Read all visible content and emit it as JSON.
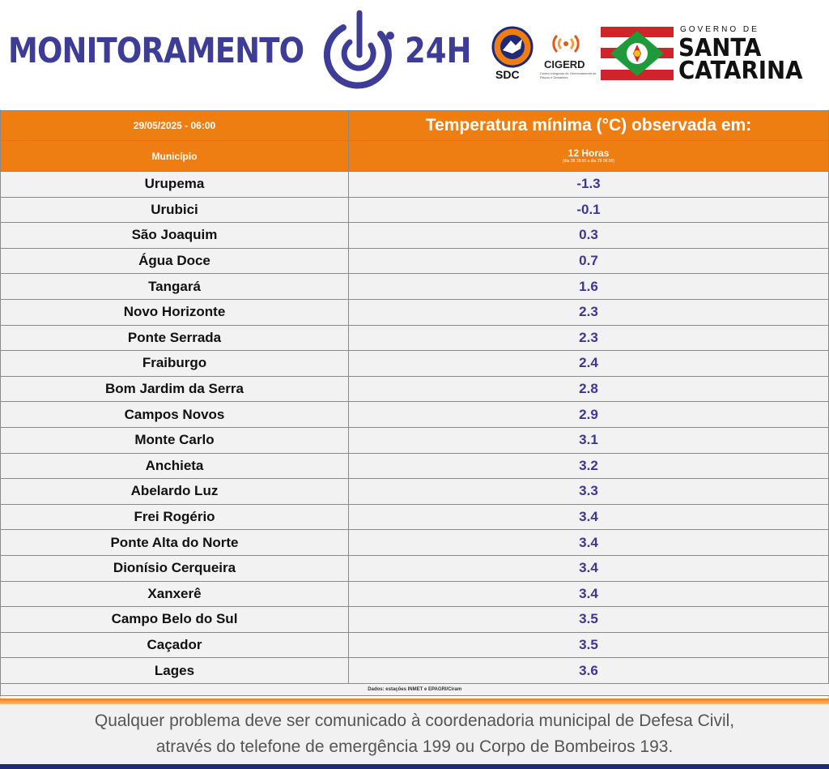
{
  "header": {
    "brand": "MONITORAMENTO",
    "brand_suffix": "24H",
    "sdc_label": "SDC",
    "cigerd_label": "CIGERD",
    "cigerd_sub": "Centro Integrado de Gerenciamento de Riscos e Desastres",
    "gov_small": "GOVERNO DE",
    "gov_line1": "SANTA",
    "gov_line2": "CATARINA",
    "brand_color": "#3d3c96"
  },
  "table": {
    "date": "29/05/2025 - 06:00",
    "title": "Temperatura mínima (°C) observada em:",
    "col_municipio": "Município",
    "col_period": "12 Horas",
    "col_period_sub": "(dia 28 18:00 a dia 29 06:00)",
    "header_color": "#ee7e12",
    "value_color": "#3b3796",
    "rows": [
      {
        "name": "Urupema",
        "value": "-1.3"
      },
      {
        "name": "Urubici",
        "value": "-0.1"
      },
      {
        "name": "São Joaquim",
        "value": "0.3"
      },
      {
        "name": "Água Doce",
        "value": "0.7"
      },
      {
        "name": "Tangará",
        "value": "1.6"
      },
      {
        "name": "Novo Horizonte",
        "value": "2.3"
      },
      {
        "name": "Ponte Serrada",
        "value": "2.3"
      },
      {
        "name": "Fraiburgo",
        "value": "2.4"
      },
      {
        "name": "Bom Jardim da Serra",
        "value": "2.8"
      },
      {
        "name": "Campos Novos",
        "value": "2.9"
      },
      {
        "name": "Monte Carlo",
        "value": "3.1"
      },
      {
        "name": "Anchieta",
        "value": "3.2"
      },
      {
        "name": "Abelardo Luz",
        "value": "3.3"
      },
      {
        "name": "Frei Rogério",
        "value": "3.4"
      },
      {
        "name": "Ponte Alta do Norte",
        "value": "3.4"
      },
      {
        "name": "Dionísio Cerqueira",
        "value": "3.4"
      },
      {
        "name": "Xanxerê",
        "value": "3.4"
      },
      {
        "name": "Campo Belo do Sul",
        "value": "3.5"
      },
      {
        "name": "Caçador",
        "value": "3.5"
      },
      {
        "name": "Lages",
        "value": "3.6"
      }
    ],
    "source": "Dados: estações INMET e EPAGRI/Ciram"
  },
  "footer": {
    "line1": "Qualquer problema deve ser comunicado à coordenadoria municipal de Defesa Civil,",
    "line2": "através do telefone de emergência 199 ou Corpo de Bombeiros 193."
  }
}
